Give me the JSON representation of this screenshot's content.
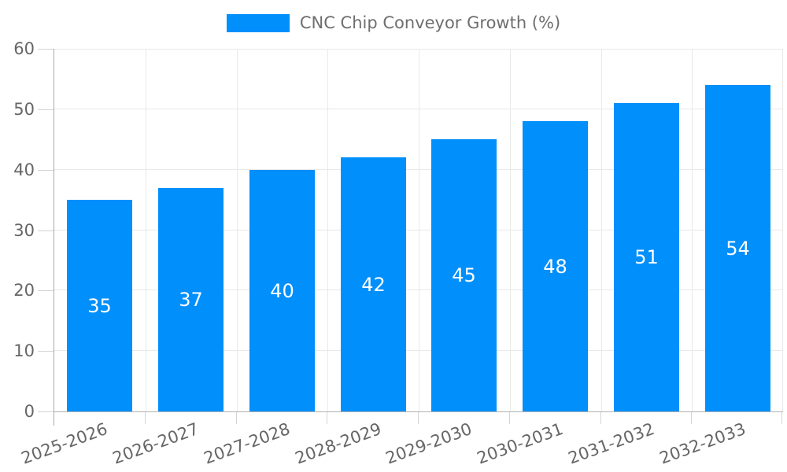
{
  "legend": {
    "label": "CNC Chip Conveyor Growth (%)"
  },
  "chart_data": {
    "type": "bar",
    "title": "CNC Chip Conveyor Growth (%)",
    "series_name": "CNC Chip Conveyor Growth (%)",
    "categories": [
      "2025-2026",
      "2026-2027",
      "2027-2028",
      "2028-2029",
      "2029-2030",
      "2030-2031",
      "2031-2032",
      "2032-2033"
    ],
    "values": [
      35,
      37,
      40,
      42,
      45,
      48,
      51,
      54
    ],
    "value_labels_position": "inside-center",
    "xlabel": "",
    "ylabel": "",
    "ylim": [
      0,
      60
    ],
    "y_ticks": [
      0,
      10,
      20,
      30,
      40,
      50,
      60
    ],
    "grid": true,
    "legend_position": "top-center",
    "colors": {
      "bar": "#008FFB",
      "grid": "#e9e9e9",
      "axis": "#a9a9a9",
      "tick": "#d4d4d4",
      "tick_text": "#666666",
      "legend_text": "#6e6e6e",
      "value_text": "#ffffff",
      "background": "#ffffff"
    }
  }
}
